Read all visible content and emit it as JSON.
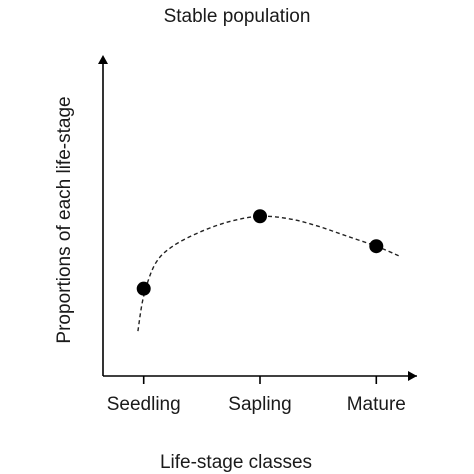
{
  "chart_data": {
    "type": "scatter",
    "title": "Stable population",
    "xlabel": "Life-stage classes",
    "ylabel": "Proportions of each life-stage",
    "categories": [
      "Seedling",
      "Sapling",
      "Mature"
    ],
    "points": [
      {
        "category": "Seedling",
        "y": 0.35
      },
      {
        "category": "Sapling",
        "y": 0.64
      },
      {
        "category": "Mature",
        "y": 0.52
      }
    ],
    "trend_curve": {
      "style": "dashed",
      "x": [
        -0.05,
        0.0,
        0.1,
        0.25,
        0.5,
        0.75,
        1.0,
        1.25,
        1.5,
        1.75,
        2.0,
        2.2
      ],
      "y": [
        0.18,
        0.32,
        0.45,
        0.52,
        0.58,
        0.62,
        0.64,
        0.63,
        0.6,
        0.56,
        0.52,
        0.48
      ]
    },
    "xlim": [
      -0.35,
      2.35
    ],
    "ylim": [
      0,
      1.25
    ],
    "y_tick_labels": false,
    "grid": false,
    "legend": "none",
    "colors": {
      "points": "#000000",
      "curve": "#222222",
      "axes": "#000000"
    }
  }
}
